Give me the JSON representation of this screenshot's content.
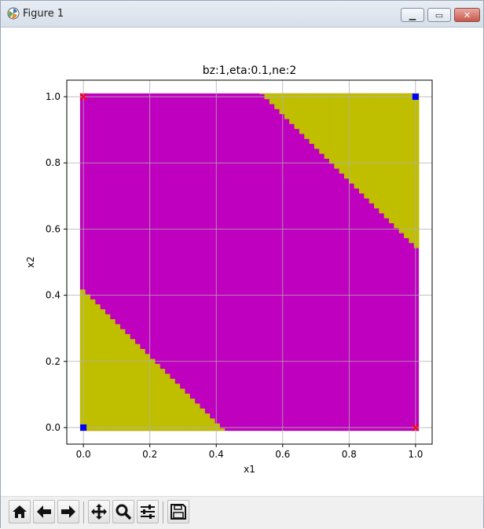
{
  "window": {
    "title": "Figure 1"
  },
  "icons": {
    "app": "matplotlib-figure-icon",
    "minimize": "minimize-icon",
    "maximize": "maximize-icon",
    "close": "close-icon"
  },
  "toolbar": {
    "buttons": [
      {
        "name": "home-icon"
      },
      {
        "name": "back-arrow-icon"
      },
      {
        "name": "forward-arrow-icon"
      },
      {
        "name": "pan-icon"
      },
      {
        "name": "zoom-icon"
      },
      {
        "name": "configure-subplots-icon"
      },
      {
        "name": "save-icon"
      }
    ]
  },
  "colors": {
    "class_a": "#bf00bf",
    "class_b": "#bfbf00",
    "marker_blue": "#0000ff",
    "marker_red": "#ff0000",
    "grid": "#b0b0b0"
  },
  "chart_data": {
    "type": "heatmap",
    "title": "bz:1,eta:0.1,ne:2",
    "xlabel": "x1",
    "ylabel": "x2",
    "xlim": [
      -0.05,
      1.05
    ],
    "ylim": [
      -0.05,
      1.05
    ],
    "xticks": [
      "0.0",
      "0.2",
      "0.4",
      "0.6",
      "0.8",
      "1.0"
    ],
    "yticks": [
      "0.0",
      "0.2",
      "0.4",
      "0.6",
      "0.8",
      "1.0"
    ],
    "xtick_values": [
      0,
      0.2,
      0.4,
      0.6,
      0.8,
      1.0
    ],
    "ytick_values": [
      0,
      0.2,
      0.4,
      0.6,
      0.8,
      1.0
    ],
    "grid": true,
    "region_extent": [
      -0.01,
      1.01
    ],
    "grid_resolution": 0.015,
    "background_class_color": "#bf00bf",
    "lower_region_color": "#bfbf00",
    "upper_region_color": "#bfbf00",
    "boundary_lower": {
      "x_sum": 0.415
    },
    "boundary_upper": {
      "x_sum": 1.545
    },
    "points": [
      {
        "x": 0,
        "y": 0,
        "marker": "square",
        "color": "#0000ff"
      },
      {
        "x": 1,
        "y": 1,
        "marker": "square",
        "color": "#0000ff"
      },
      {
        "x": 0,
        "y": 1,
        "marker": "x",
        "color": "#ff0000"
      },
      {
        "x": 1,
        "y": 0,
        "marker": "x",
        "color": "#ff0000"
      }
    ]
  }
}
